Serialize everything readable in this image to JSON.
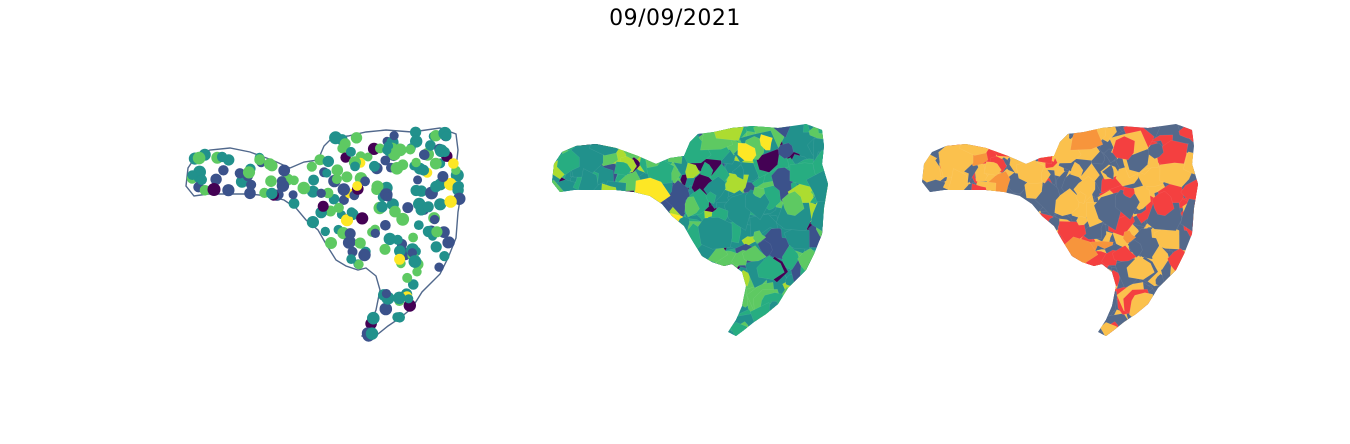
{
  "figure": {
    "title": "09/09/2021"
  },
  "panels": [
    {
      "id": "points",
      "kind": "bubble-map",
      "outline_color": "#51688c",
      "palette": [
        "#440154",
        "#3b528b",
        "#21918c",
        "#5ec962",
        "#fde725"
      ]
    },
    {
      "id": "choropleth-viridis",
      "kind": "choropleth",
      "palette": [
        "#440154",
        "#3b528b",
        "#21918c",
        "#27ad81",
        "#5ec962",
        "#addc30",
        "#fde725"
      ]
    },
    {
      "id": "choropleth-risk",
      "kind": "choropleth",
      "palette": [
        "#53698b",
        "#fbc14d",
        "#f7953c",
        "#f44040"
      ]
    }
  ]
}
